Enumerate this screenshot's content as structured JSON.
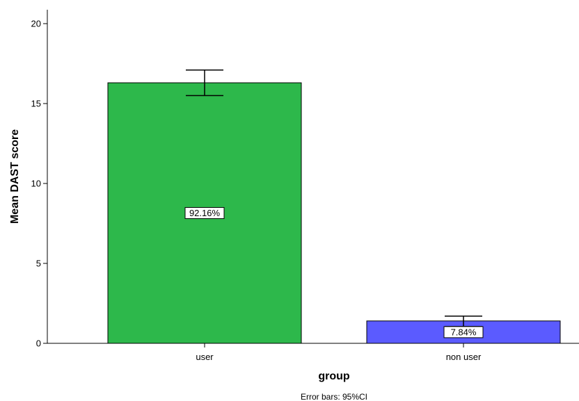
{
  "chart_data": {
    "type": "bar",
    "categories": [
      "user",
      "non user"
    ],
    "values": [
      16.3,
      1.4
    ],
    "error_bars": {
      "lower": [
        15.5,
        1.05
      ],
      "upper": [
        17.1,
        1.7
      ]
    },
    "data_labels": [
      "92.16%",
      "7.84%"
    ],
    "xlabel": "group",
    "ylabel": "Mean DAST score",
    "ylim": [
      0,
      20
    ],
    "yticks": [
      0,
      5,
      10,
      15,
      20
    ],
    "grid": false,
    "footnote": "Error bars: 95%CI",
    "colors": [
      "#2db84b",
      "#5b5bff"
    ]
  }
}
